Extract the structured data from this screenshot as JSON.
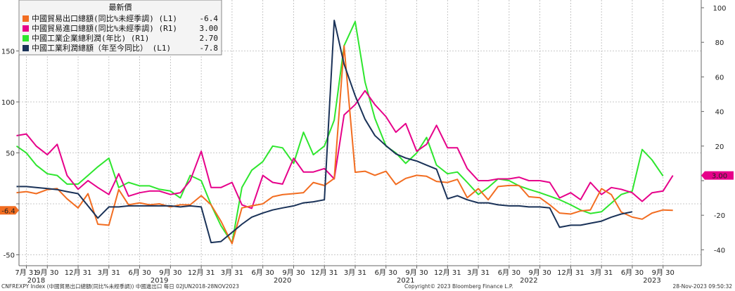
{
  "chart_data": {
    "type": "line",
    "legend_title": "最新價",
    "legend_placement": "top-left",
    "grid": true,
    "left_axis": {
      "ylim": [
        -50,
        195
      ],
      "ticks": [
        -50,
        0,
        50,
        100,
        150
      ],
      "tick_labels": [
        "-50",
        "0",
        "50",
        "100",
        "150"
      ]
    },
    "right_axis": {
      "ylim": [
        -40,
        100
      ],
      "ticks": [
        -40,
        -20,
        0,
        20,
        40,
        60,
        80,
        100
      ],
      "tick_labels": [
        "-40",
        "-20",
        "0",
        "20",
        "40",
        "60",
        "80",
        "100"
      ]
    },
    "x_range": [
      2018.44,
      2023.98
    ],
    "month_ticks": [
      {
        "t": 2018.5,
        "label": "7月 31"
      },
      {
        "t": 2018.67,
        "label": "9月 30"
      },
      {
        "t": 2018.92,
        "label": "12月 31"
      },
      {
        "t": 2019.17,
        "label": "3月 31"
      },
      {
        "t": 2019.42,
        "label": "6月 30"
      },
      {
        "t": 2019.67,
        "label": "9月 30"
      },
      {
        "t": 2019.92,
        "label": "12月 31"
      },
      {
        "t": 2020.17,
        "label": "3月 31"
      },
      {
        "t": 2020.42,
        "label": "6月 30"
      },
      {
        "t": 2020.67,
        "label": "9月 30"
      },
      {
        "t": 2020.92,
        "label": "12月 31"
      },
      {
        "t": 2021.17,
        "label": "3月 31"
      },
      {
        "t": 2021.42,
        "label": "6月 30"
      },
      {
        "t": 2021.67,
        "label": "9月 30"
      },
      {
        "t": 2021.92,
        "label": "12月 31"
      },
      {
        "t": 2022.17,
        "label": "3月 31"
      },
      {
        "t": 2022.42,
        "label": "6月 30"
      },
      {
        "t": 2022.67,
        "label": "9月 30"
      },
      {
        "t": 2022.92,
        "label": "12月 31"
      },
      {
        "t": 2023.17,
        "label": "3月 31"
      },
      {
        "t": 2023.42,
        "label": "6月 30"
      },
      {
        "t": 2023.67,
        "label": "9月 30"
      }
    ],
    "year_ticks": [
      {
        "t": 2018.58,
        "label": "2018"
      },
      {
        "t": 2019.58,
        "label": "2019"
      },
      {
        "t": 2020.58,
        "label": "2020"
      },
      {
        "t": 2021.58,
        "label": "2021"
      },
      {
        "t": 2022.58,
        "label": "2022"
      },
      {
        "t": 2023.58,
        "label": "2023"
      }
    ],
    "series": [
      {
        "name": "中國貿易出口總額(同比%未經季調) (L1)",
        "last_value": "-6.4",
        "axis": "left",
        "color": "#f26d21",
        "values": [
          [
            2018.42,
            11
          ],
          [
            2018.5,
            12
          ],
          [
            2018.58,
            10
          ],
          [
            2018.67,
            14
          ],
          [
            2018.75,
            15
          ],
          [
            2018.83,
            5
          ],
          [
            2018.92,
            -4
          ],
          [
            2019.0,
            10
          ],
          [
            2019.08,
            -20
          ],
          [
            2019.17,
            -21
          ],
          [
            2019.25,
            14
          ],
          [
            2019.33,
            -1
          ],
          [
            2019.42,
            1
          ],
          [
            2019.5,
            -1
          ],
          [
            2019.58,
            0
          ],
          [
            2019.67,
            -3
          ],
          [
            2019.75,
            -1
          ],
          [
            2019.83,
            -1
          ],
          [
            2019.92,
            8
          ],
          [
            2020.0,
            -1
          ],
          [
            2020.08,
            -17
          ],
          [
            2020.17,
            -39
          ],
          [
            2020.25,
            -4
          ],
          [
            2020.33,
            -2
          ],
          [
            2020.42,
            0
          ],
          [
            2020.5,
            7
          ],
          [
            2020.58,
            9
          ],
          [
            2020.67,
            10
          ],
          [
            2020.75,
            11
          ],
          [
            2020.83,
            21
          ],
          [
            2020.92,
            18
          ],
          [
            2021.0,
            25
          ],
          [
            2021.08,
            155
          ],
          [
            2021.17,
            31
          ],
          [
            2021.25,
            32
          ],
          [
            2021.33,
            28
          ],
          [
            2021.42,
            32
          ],
          [
            2021.5,
            19
          ],
          [
            2021.58,
            25
          ],
          [
            2021.67,
            28
          ],
          [
            2021.75,
            27
          ],
          [
            2021.83,
            22
          ],
          [
            2021.92,
            21
          ],
          [
            2022.0,
            24
          ],
          [
            2022.08,
            6
          ],
          [
            2022.17,
            15
          ],
          [
            2022.25,
            4
          ],
          [
            2022.33,
            17
          ],
          [
            2022.42,
            18
          ],
          [
            2022.5,
            18
          ],
          [
            2022.58,
            7
          ],
          [
            2022.67,
            6
          ],
          [
            2022.75,
            -1
          ],
          [
            2022.83,
            -9
          ],
          [
            2022.92,
            -10
          ],
          [
            2023.0,
            -7
          ],
          [
            2023.08,
            -6
          ],
          [
            2023.17,
            15
          ],
          [
            2023.25,
            9
          ],
          [
            2023.33,
            -8
          ],
          [
            2023.42,
            -13
          ],
          [
            2023.5,
            -15
          ],
          [
            2023.58,
            -9
          ],
          [
            2023.67,
            -6
          ],
          [
            2023.75,
            -6.4
          ]
        ]
      },
      {
        "name": "中國貿易進口總額(同比%未經季調) (R1)",
        "last_value": "3.00",
        "axis": "right",
        "color": "#e6008a",
        "values": [
          [
            2018.42,
            26
          ],
          [
            2018.5,
            27
          ],
          [
            2018.58,
            20
          ],
          [
            2018.67,
            15
          ],
          [
            2018.75,
            21
          ],
          [
            2018.83,
            3
          ],
          [
            2018.92,
            -5
          ],
          [
            2019.0,
            0
          ],
          [
            2019.08,
            -4
          ],
          [
            2019.17,
            -8
          ],
          [
            2019.25,
            4
          ],
          [
            2019.33,
            -9
          ],
          [
            2019.42,
            -7
          ],
          [
            2019.5,
            -6
          ],
          [
            2019.58,
            -6
          ],
          [
            2019.67,
            -8
          ],
          [
            2019.75,
            -7
          ],
          [
            2019.83,
            0
          ],
          [
            2019.92,
            17
          ],
          [
            2020.0,
            -4
          ],
          [
            2020.08,
            -4
          ],
          [
            2020.17,
            -1
          ],
          [
            2020.25,
            -14
          ],
          [
            2020.33,
            -16
          ],
          [
            2020.42,
            3
          ],
          [
            2020.5,
            -1
          ],
          [
            2020.58,
            -2
          ],
          [
            2020.67,
            13
          ],
          [
            2020.75,
            5
          ],
          [
            2020.83,
            5
          ],
          [
            2020.92,
            7
          ],
          [
            2021.0,
            1
          ],
          [
            2021.08,
            38
          ],
          [
            2021.17,
            44
          ],
          [
            2021.25,
            52
          ],
          [
            2021.33,
            44
          ],
          [
            2021.42,
            37
          ],
          [
            2021.5,
            28
          ],
          [
            2021.58,
            33
          ],
          [
            2021.67,
            17
          ],
          [
            2021.75,
            21
          ],
          [
            2021.83,
            32
          ],
          [
            2021.92,
            19
          ],
          [
            2022.0,
            19
          ],
          [
            2022.08,
            7
          ],
          [
            2022.17,
            0
          ],
          [
            2022.25,
            0
          ],
          [
            2022.33,
            1
          ],
          [
            2022.42,
            1
          ],
          [
            2022.5,
            2
          ],
          [
            2022.58,
            0
          ],
          [
            2022.67,
            0
          ],
          [
            2022.75,
            -1
          ],
          [
            2022.83,
            -10
          ],
          [
            2022.92,
            -7
          ],
          [
            2023.0,
            -11
          ],
          [
            2023.08,
            -1
          ],
          [
            2023.17,
            -8
          ],
          [
            2023.25,
            -4
          ],
          [
            2023.33,
            -5
          ],
          [
            2023.42,
            -7
          ],
          [
            2023.5,
            -12
          ],
          [
            2023.58,
            -7
          ],
          [
            2023.67,
            -6
          ],
          [
            2023.75,
            3
          ]
        ]
      },
      {
        "name": "中國工業企業總利潤(年比) (R1)",
        "last_value": "2.70",
        "axis": "right",
        "color": "#2ee62e",
        "values": [
          [
            2018.42,
            20
          ],
          [
            2018.5,
            16
          ],
          [
            2018.58,
            9
          ],
          [
            2018.67,
            4
          ],
          [
            2018.75,
            3
          ],
          [
            2018.83,
            -2
          ],
          [
            2018.92,
            -2
          ],
          [
            2019.0,
            3
          ],
          [
            2019.08,
            8
          ],
          [
            2019.17,
            13
          ],
          [
            2019.25,
            -4
          ],
          [
            2019.33,
            -1
          ],
          [
            2019.42,
            -3
          ],
          [
            2019.5,
            -3
          ],
          [
            2019.58,
            -5
          ],
          [
            2019.67,
            -6
          ],
          [
            2019.75,
            -10
          ],
          [
            2019.83,
            3
          ],
          [
            2019.92,
            0
          ],
          [
            2020.0,
            -14
          ],
          [
            2020.08,
            -26
          ],
          [
            2020.17,
            -36
          ],
          [
            2020.25,
            -4
          ],
          [
            2020.33,
            6
          ],
          [
            2020.42,
            11
          ],
          [
            2020.5,
            20
          ],
          [
            2020.58,
            19
          ],
          [
            2020.67,
            10
          ],
          [
            2020.75,
            28
          ],
          [
            2020.83,
            15
          ],
          [
            2020.92,
            20
          ],
          [
            2021.0,
            35
          ],
          [
            2021.08,
            78
          ],
          [
            2021.17,
            92
          ],
          [
            2021.25,
            57
          ],
          [
            2021.33,
            36
          ],
          [
            2021.42,
            20
          ],
          [
            2021.5,
            16
          ],
          [
            2021.58,
            10
          ],
          [
            2021.67,
            16
          ],
          [
            2021.75,
            25
          ],
          [
            2021.83,
            9
          ],
          [
            2021.92,
            4
          ],
          [
            2022.0,
            5
          ],
          [
            2022.08,
            -1
          ],
          [
            2022.17,
            -8
          ],
          [
            2022.25,
            -4
          ],
          [
            2022.33,
            1
          ],
          [
            2022.42,
            0
          ],
          [
            2022.5,
            -3
          ],
          [
            2022.58,
            -5
          ],
          [
            2022.67,
            -7
          ],
          [
            2022.75,
            -9
          ],
          [
            2022.83,
            -11
          ],
          [
            2022.92,
            -14
          ],
          [
            2023.0,
            -17
          ],
          [
            2023.08,
            -19
          ],
          [
            2023.17,
            -18
          ],
          [
            2023.25,
            -13
          ],
          [
            2023.33,
            -8
          ],
          [
            2023.42,
            -6
          ],
          [
            2023.5,
            18
          ],
          [
            2023.58,
            12
          ],
          [
            2023.67,
            2.7
          ]
        ]
      },
      {
        "name": "中國工業利潤總額（年至今同比） (L1)",
        "last_value": "-7.8",
        "axis": "left",
        "color": "#1a3258",
        "values": [
          [
            2018.42,
            17
          ],
          [
            2018.5,
            17
          ],
          [
            2018.58,
            16
          ],
          [
            2018.67,
            15
          ],
          [
            2018.75,
            14
          ],
          [
            2018.83,
            12
          ],
          [
            2018.92,
            10
          ],
          [
            2019.0,
            -2
          ],
          [
            2019.08,
            -14
          ],
          [
            2019.17,
            -3
          ],
          [
            2019.25,
            -3
          ],
          [
            2019.33,
            -2
          ],
          [
            2019.42,
            -2
          ],
          [
            2019.5,
            -2
          ],
          [
            2019.58,
            -2
          ],
          [
            2019.67,
            -2
          ],
          [
            2019.75,
            -3
          ],
          [
            2019.83,
            -2
          ],
          [
            2019.92,
            -3
          ],
          [
            2020.0,
            -38
          ],
          [
            2020.08,
            -37
          ],
          [
            2020.17,
            -28
          ],
          [
            2020.25,
            -20
          ],
          [
            2020.33,
            -13
          ],
          [
            2020.42,
            -9
          ],
          [
            2020.5,
            -6
          ],
          [
            2020.58,
            -4
          ],
          [
            2020.67,
            -2
          ],
          [
            2020.75,
            1
          ],
          [
            2020.83,
            2
          ],
          [
            2020.92,
            4
          ],
          [
            2021.0,
            180
          ],
          [
            2021.08,
            137
          ],
          [
            2021.17,
            106
          ],
          [
            2021.25,
            83
          ],
          [
            2021.33,
            67
          ],
          [
            2021.42,
            57
          ],
          [
            2021.5,
            49
          ],
          [
            2021.58,
            45
          ],
          [
            2021.67,
            42
          ],
          [
            2021.75,
            38
          ],
          [
            2021.83,
            34
          ],
          [
            2021.92,
            5
          ],
          [
            2022.0,
            8
          ],
          [
            2022.08,
            4
          ],
          [
            2022.17,
            1
          ],
          [
            2022.25,
            1
          ],
          [
            2022.33,
            -1
          ],
          [
            2022.42,
            -2
          ],
          [
            2022.5,
            -2
          ],
          [
            2022.58,
            -3
          ],
          [
            2022.67,
            -3
          ],
          [
            2022.75,
            -4
          ],
          [
            2022.83,
            -23
          ],
          [
            2022.92,
            -21
          ],
          [
            2023.0,
            -21
          ],
          [
            2023.08,
            -19
          ],
          [
            2023.17,
            -17
          ],
          [
            2023.25,
            -13
          ],
          [
            2023.33,
            -10
          ],
          [
            2023.42,
            -7.8
          ]
        ]
      }
    ]
  },
  "left_pill": {
    "label": "-6.4",
    "color": "#f26d21"
  },
  "right_pill": {
    "label": "3.00",
    "color": "#e6008a"
  },
  "footer": {
    "left": "CNFREXPY Index (中國貿易出口總額(同比%未經季調)) 中國進出口 每日 02JUN2018-28NOV2023",
    "center": "Copyright© 2023 Bloomberg Finance L.P.",
    "right": "28-Nov-2023 09:50:32"
  }
}
